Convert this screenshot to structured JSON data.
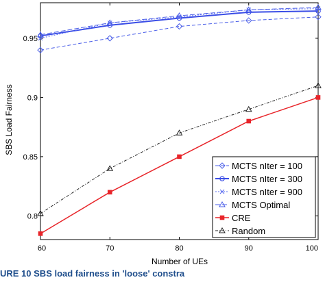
{
  "chart_data": {
    "type": "line",
    "xlabel": "Number of UEs",
    "ylabel": "SBS Load Fairness",
    "x": [
      60,
      70,
      80,
      90,
      100
    ],
    "xlim": [
      60,
      100
    ],
    "ylim": [
      0.78,
      0.98
    ],
    "xticks": [
      "60",
      "70",
      "80",
      "90",
      "100"
    ],
    "yticks": [
      {
        "v": 0.8,
        "label": "0.8"
      },
      {
        "v": 0.85,
        "label": "0.85"
      },
      {
        "v": 0.9,
        "label": "0.9"
      },
      {
        "v": 0.95,
        "label": "0.95"
      }
    ],
    "grid": false,
    "legend_position": "bottom-right",
    "series": [
      {
        "name": "MCTS nIter = 100",
        "values": [
          0.94,
          0.95,
          0.96,
          0.965,
          0.968
        ],
        "color": "#4a5ee8",
        "dash": "5,3",
        "marker": "diamond",
        "width": 1
      },
      {
        "name": "MCTS nIter = 300",
        "values": [
          0.952,
          0.961,
          0.967,
          0.972,
          0.973
        ],
        "color": "#3a4de6",
        "dash": "",
        "marker": "circle",
        "width": 2
      },
      {
        "name": "MCTS nIter = 900",
        "values": [
          0.95,
          0.963,
          0.968,
          0.974,
          0.975
        ],
        "color": "#5a6cf0",
        "dash": "2,2",
        "marker": "x",
        "width": 1
      },
      {
        "name": "MCTS Optimal",
        "values": [
          0.953,
          0.963,
          0.969,
          0.974,
          0.976
        ],
        "color": "#4a5ee8",
        "dash": "7,3",
        "marker": "triangle",
        "width": 1
      },
      {
        "name": "CRE",
        "values": [
          0.785,
          0.82,
          0.85,
          0.88,
          0.9
        ],
        "color": "#e8252a",
        "dash": "",
        "marker": "square",
        "width": 1.5
      },
      {
        "name": "Random",
        "values": [
          0.802,
          0.84,
          0.87,
          0.89,
          0.91
        ],
        "color": "#222222",
        "dash": "4,2,1,2",
        "marker": "triangle",
        "width": 1
      }
    ]
  },
  "caption": "URE 10  SBS load fairness in 'loose' constra"
}
